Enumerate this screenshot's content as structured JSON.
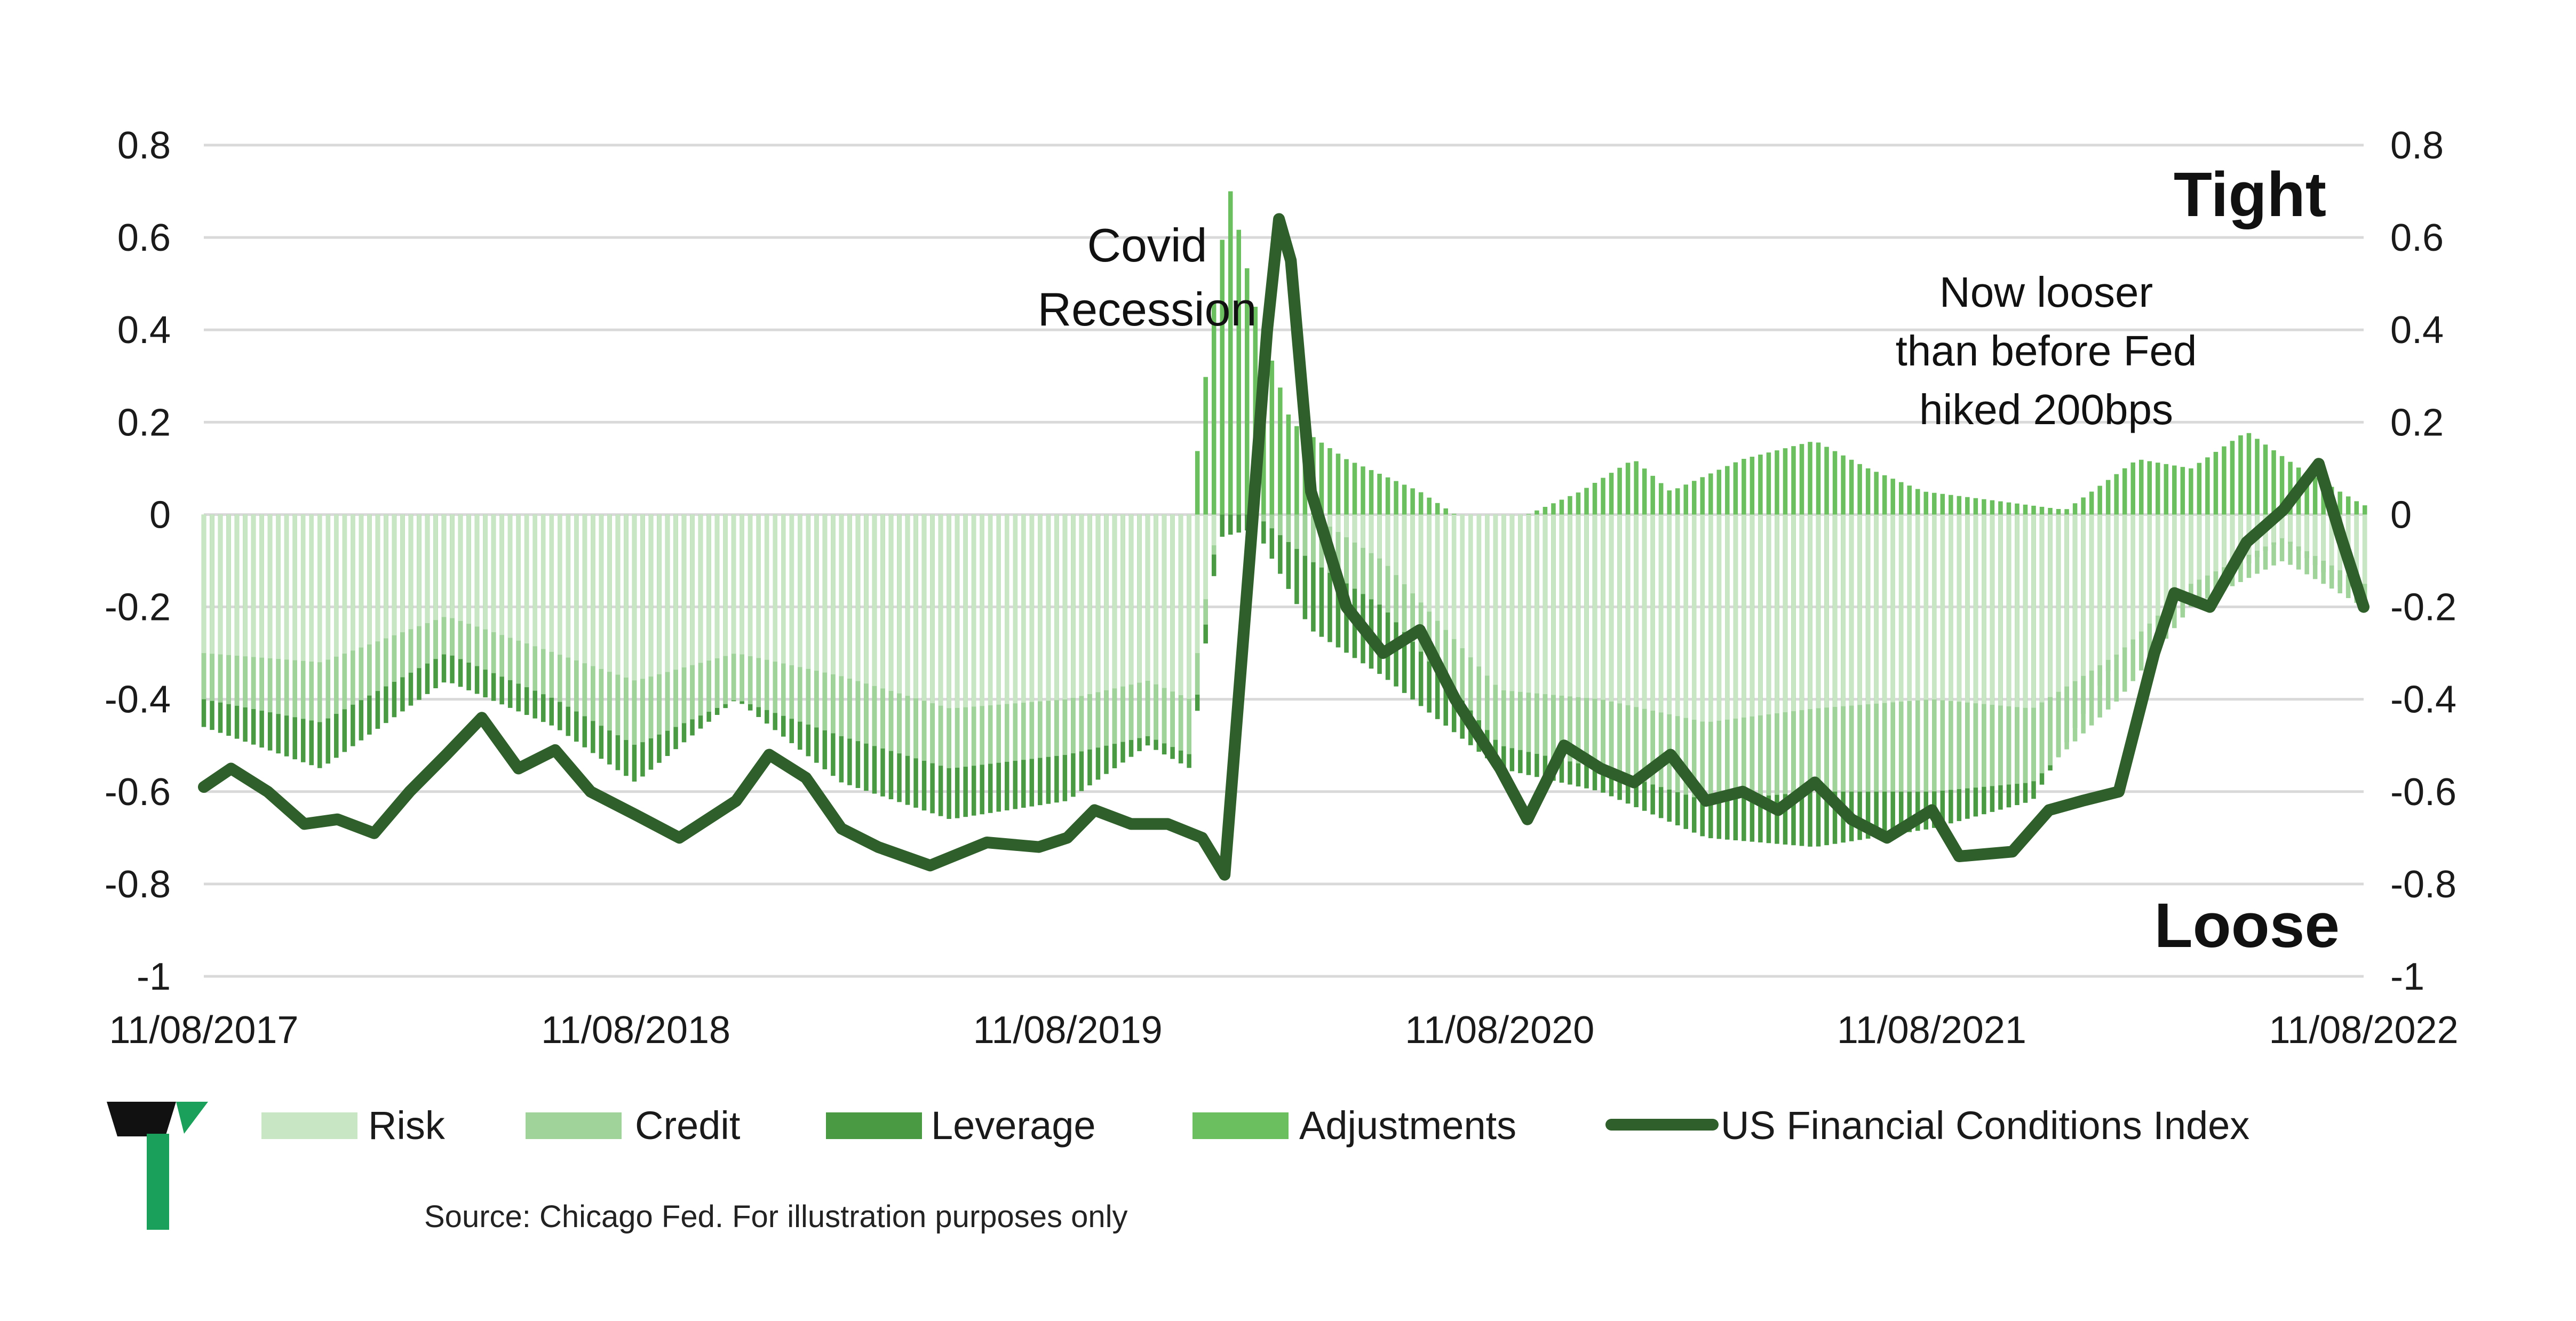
{
  "chart_data": {
    "type": "bar",
    "x_tick_labels": [
      "11/08/2017",
      "11/08/2018",
      "11/08/2019",
      "11/08/2020",
      "11/08/2021",
      "11/08/2022"
    ],
    "x_range": [
      "2017-11-08",
      "2022-11-08"
    ],
    "y_ticks": [
      0.8,
      0.6,
      0.4,
      0.2,
      0,
      -0.2,
      -0.4,
      -0.6,
      -0.8,
      -1
    ],
    "y_tick_labels": [
      "0.8",
      "0.6",
      "0.4",
      "0.2",
      "0",
      "-0.2",
      "-0.4",
      "-0.6",
      "-0.8",
      "-1"
    ],
    "ylim": [
      -1,
      0.8
    ],
    "grid": "horizontal",
    "legend_position": "bottom",
    "colors": {
      "risk": "#c8e6c4",
      "credit": "#9fd39a",
      "leverage": "#4a9a44",
      "adjustments": "#6cbf5f",
      "index_line": "#2f5f2a",
      "grid": "#d9d9d9",
      "logo_black": "#111111",
      "logo_green": "#1aa05a"
    },
    "series": [
      {
        "name": "Risk",
        "kind": "bar",
        "points": [
          [
            "2017-11-08",
            -0.3
          ],
          [
            "2018-02-15",
            -0.32
          ],
          [
            "2018-06-01",
            -0.22
          ],
          [
            "2018-09-01",
            -0.3
          ],
          [
            "2018-11-08",
            -0.36
          ],
          [
            "2019-02-01",
            -0.3
          ],
          [
            "2019-05-01",
            -0.35
          ],
          [
            "2019-08-01",
            -0.42
          ],
          [
            "2019-11-08",
            -0.4
          ],
          [
            "2020-01-15",
            -0.36
          ],
          [
            "2020-02-20",
            -0.4
          ],
          [
            "2020-03-15",
            0.0
          ],
          [
            "2020-04-15",
            0.0
          ],
          [
            "2020-06-01",
            0.0
          ],
          [
            "2020-08-01",
            -0.1
          ],
          [
            "2020-11-08",
            -0.38
          ],
          [
            "2021-02-01",
            -0.4
          ],
          [
            "2021-05-01",
            -0.45
          ],
          [
            "2021-08-01",
            -0.42
          ],
          [
            "2021-11-08",
            -0.4
          ],
          [
            "2022-02-01",
            -0.42
          ],
          [
            "2022-04-15",
            -0.3
          ],
          [
            "2022-06-15",
            -0.15
          ],
          [
            "2022-09-01",
            -0.05
          ],
          [
            "2022-11-08",
            -0.15
          ]
        ]
      },
      {
        "name": "Credit",
        "kind": "bar",
        "points": [
          [
            "2017-11-08",
            -0.4
          ],
          [
            "2018-02-15",
            -0.45
          ],
          [
            "2018-06-01",
            -0.3
          ],
          [
            "2018-09-01",
            -0.4
          ],
          [
            "2018-11-08",
            -0.5
          ],
          [
            "2019-02-01",
            -0.4
          ],
          [
            "2019-05-01",
            -0.48
          ],
          [
            "2019-08-01",
            -0.55
          ],
          [
            "2019-11-08",
            -0.52
          ],
          [
            "2020-01-15",
            -0.48
          ],
          [
            "2020-02-20",
            -0.52
          ],
          [
            "2020-03-15",
            0.0
          ],
          [
            "2020-04-15",
            0.0
          ],
          [
            "2020-06-01",
            -0.1
          ],
          [
            "2020-08-01",
            -0.2
          ],
          [
            "2020-11-08",
            -0.5
          ],
          [
            "2021-02-01",
            -0.55
          ],
          [
            "2021-05-01",
            -0.62
          ],
          [
            "2021-08-01",
            -0.6
          ],
          [
            "2021-11-08",
            -0.6
          ],
          [
            "2022-02-01",
            -0.58
          ],
          [
            "2022-04-15",
            -0.4
          ],
          [
            "2022-06-15",
            -0.2
          ],
          [
            "2022-09-01",
            -0.1
          ],
          [
            "2022-11-08",
            -0.2
          ]
        ]
      },
      {
        "name": "Leverage",
        "kind": "bar",
        "points": [
          [
            "2017-11-08",
            -0.46
          ],
          [
            "2018-02-15",
            -0.55
          ],
          [
            "2018-06-01",
            -0.36
          ],
          [
            "2018-09-01",
            -0.46
          ],
          [
            "2018-11-08",
            -0.58
          ],
          [
            "2019-02-01",
            -0.4
          ],
          [
            "2019-05-01",
            -0.58
          ],
          [
            "2019-08-01",
            -0.66
          ],
          [
            "2019-11-08",
            -0.62
          ],
          [
            "2020-01-15",
            -0.5
          ],
          [
            "2020-02-20",
            -0.55
          ],
          [
            "2020-03-15",
            -0.05
          ],
          [
            "2020-04-15",
            -0.03
          ],
          [
            "2020-06-01",
            -0.25
          ],
          [
            "2020-08-01",
            -0.35
          ],
          [
            "2020-11-08",
            -0.55
          ],
          [
            "2021-02-01",
            -0.6
          ],
          [
            "2021-05-01",
            -0.7
          ],
          [
            "2021-08-01",
            -0.72
          ],
          [
            "2021-11-08",
            -0.68
          ],
          [
            "2022-02-01",
            -0.62
          ],
          [
            "2022-04-15",
            -0.3
          ],
          [
            "2022-06-15",
            -0.2
          ],
          [
            "2022-09-01",
            -0.05
          ],
          [
            "2022-11-08",
            -0.2
          ]
        ]
      },
      {
        "name": "Adjustments",
        "kind": "bar",
        "points": [
          [
            "2017-11-08",
            0.0
          ],
          [
            "2018-02-15",
            0.0
          ],
          [
            "2018-06-01",
            0.0
          ],
          [
            "2018-09-01",
            0.0
          ],
          [
            "2018-11-08",
            0.0
          ],
          [
            "2019-02-01",
            0.0
          ],
          [
            "2019-05-01",
            0.0
          ],
          [
            "2019-08-01",
            0.0
          ],
          [
            "2019-11-08",
            0.0
          ],
          [
            "2020-01-15",
            0.0
          ],
          [
            "2020-02-20",
            0.0
          ],
          [
            "2020-03-15",
            0.55
          ],
          [
            "2020-03-25",
            0.7
          ],
          [
            "2020-04-15",
            0.45
          ],
          [
            "2020-05-15",
            0.2
          ],
          [
            "2020-07-01",
            0.12
          ],
          [
            "2020-09-01",
            0.05
          ],
          [
            "2020-10-01",
            0.0
          ],
          [
            "2020-12-01",
            0.0
          ],
          [
            "2021-01-15",
            0.05
          ],
          [
            "2021-03-01",
            0.12
          ],
          [
            "2021-04-01",
            0.05
          ],
          [
            "2021-06-01",
            0.12
          ],
          [
            "2021-08-01",
            0.16
          ],
          [
            "2021-09-15",
            0.1
          ],
          [
            "2021-11-01",
            0.05
          ],
          [
            "2022-01-01",
            0.03
          ],
          [
            "2022-03-01",
            0.01
          ],
          [
            "2022-05-01",
            0.12
          ],
          [
            "2022-06-15",
            0.1
          ],
          [
            "2022-08-01",
            0.18
          ],
          [
            "2022-09-15",
            0.1
          ],
          [
            "2022-11-08",
            0.02
          ]
        ]
      },
      {
        "name": "US Financial Conditions Index",
        "kind": "line",
        "points": [
          [
            "2017-11-08",
            -0.59
          ],
          [
            "2017-12-01",
            -0.55
          ],
          [
            "2018-01-01",
            -0.6
          ],
          [
            "2018-02-01",
            -0.67
          ],
          [
            "2018-03-01",
            -0.66
          ],
          [
            "2018-04-01",
            -0.69
          ],
          [
            "2018-05-01",
            -0.6
          ],
          [
            "2018-06-01",
            -0.52
          ],
          [
            "2018-07-01",
            -0.44
          ],
          [
            "2018-08-01",
            -0.55
          ],
          [
            "2018-09-01",
            -0.51
          ],
          [
            "2018-10-01",
            -0.6
          ],
          [
            "2018-11-08",
            -0.65
          ],
          [
            "2018-12-15",
            -0.7
          ],
          [
            "2019-02-01",
            -0.62
          ],
          [
            "2019-03-01",
            -0.52
          ],
          [
            "2019-04-01",
            -0.57
          ],
          [
            "2019-05-01",
            -0.68
          ],
          [
            "2019-06-01",
            -0.72
          ],
          [
            "2019-07-15",
            -0.76
          ],
          [
            "2019-09-01",
            -0.71
          ],
          [
            "2019-10-15",
            -0.72
          ],
          [
            "2019-11-08",
            -0.7
          ],
          [
            "2019-12-01",
            -0.64
          ],
          [
            "2020-01-01",
            -0.67
          ],
          [
            "2020-02-01",
            -0.67
          ],
          [
            "2020-03-01",
            -0.7
          ],
          [
            "2020-03-20",
            -0.78
          ],
          [
            "2020-04-10",
            -0.1
          ],
          [
            "2020-04-25",
            0.4
          ],
          [
            "2020-05-05",
            0.64
          ],
          [
            "2020-05-15",
            0.55
          ],
          [
            "2020-06-01",
            0.05
          ],
          [
            "2020-07-01",
            -0.2
          ],
          [
            "2020-08-01",
            -0.3
          ],
          [
            "2020-09-01",
            -0.25
          ],
          [
            "2020-10-01",
            -0.4
          ],
          [
            "2020-11-08",
            -0.55
          ],
          [
            "2020-12-01",
            -0.66
          ],
          [
            "2021-01-01",
            -0.5
          ],
          [
            "2021-02-01",
            -0.55
          ],
          [
            "2021-03-01",
            -0.58
          ],
          [
            "2021-04-01",
            -0.52
          ],
          [
            "2021-05-01",
            -0.62
          ],
          [
            "2021-06-01",
            -0.6
          ],
          [
            "2021-07-01",
            -0.64
          ],
          [
            "2021-08-01",
            -0.58
          ],
          [
            "2021-09-01",
            -0.66
          ],
          [
            "2021-10-01",
            -0.7
          ],
          [
            "2021-11-08",
            -0.64
          ],
          [
            "2021-12-01",
            -0.74
          ],
          [
            "2022-01-15",
            -0.73
          ],
          [
            "2022-02-15",
            -0.64
          ],
          [
            "2022-03-15",
            -0.62
          ],
          [
            "2022-04-15",
            -0.6
          ],
          [
            "2022-05-15",
            -0.3
          ],
          [
            "2022-06-01",
            -0.17
          ],
          [
            "2022-07-01",
            -0.2
          ],
          [
            "2022-08-01",
            -0.06
          ],
          [
            "2022-09-01",
            0.01
          ],
          [
            "2022-10-01",
            0.11
          ],
          [
            "2022-10-20",
            -0.05
          ],
          [
            "2022-11-08",
            -0.2
          ]
        ]
      }
    ],
    "annotations": {
      "covid": [
        "Covid",
        "Recession"
      ],
      "now_looser": [
        "Now looser",
        "than before Fed",
        "hiked 200bps"
      ],
      "tight": "Tight",
      "loose": "Loose"
    },
    "source": "Source: Chicago Fed. For illustration purposes only"
  }
}
